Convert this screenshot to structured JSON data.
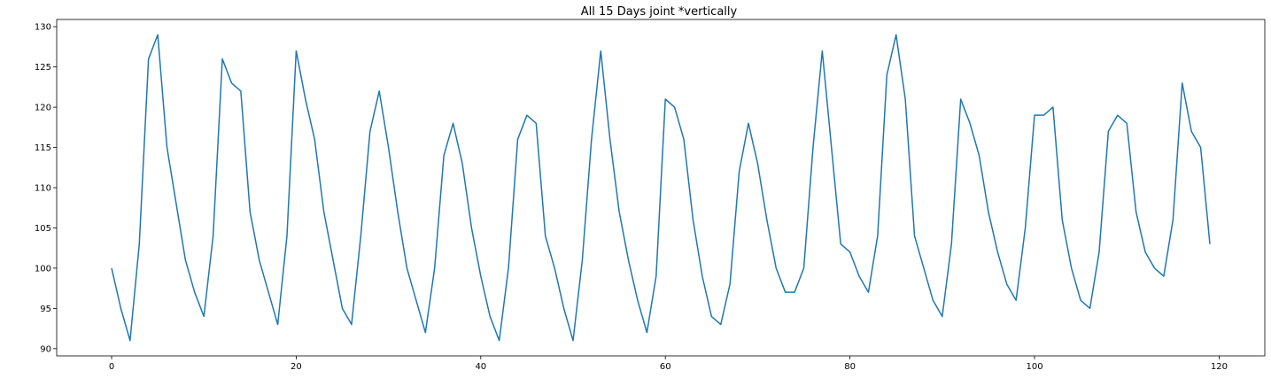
{
  "chart_data": {
    "type": "line",
    "title": "All 15 Days joint *vertically",
    "xlabel": "",
    "ylabel": "",
    "xlim": [
      -5.95,
      124.95
    ],
    "ylim": [
      89.1,
      130.9
    ],
    "xticks": [
      0,
      20,
      40,
      60,
      80,
      100,
      120
    ],
    "yticks": [
      90,
      95,
      100,
      105,
      110,
      115,
      120,
      125,
      130
    ],
    "grid": false,
    "legend": "none",
    "series_color": "#1f77b4",
    "series": [
      {
        "values": [
          100,
          95,
          91,
          103,
          126,
          129,
          115,
          108,
          101,
          97,
          94,
          104,
          126,
          123,
          122,
          107,
          101,
          97,
          93,
          104,
          127,
          121,
          116,
          107,
          101,
          95,
          93,
          104,
          117,
          122,
          115,
          107,
          100,
          96,
          92,
          100,
          114,
          118,
          113,
          105,
          99,
          94,
          91,
          100,
          116,
          119,
          118,
          104,
          100,
          95,
          91,
          101,
          116,
          127,
          116,
          107,
          101,
          96,
          92,
          99,
          121,
          120,
          116,
          106,
          99,
          94,
          93,
          98,
          112,
          118,
          113,
          106,
          100,
          97,
          97,
          100,
          115,
          127,
          115,
          103,
          102,
          99,
          97,
          104,
          124,
          129,
          121,
          104,
          100,
          96,
          94,
          103,
          121,
          118,
          114,
          107,
          102,
          98,
          96,
          105,
          119,
          119,
          120,
          106,
          100,
          96,
          95,
          102,
          117,
          119,
          118,
          107,
          102,
          100,
          99,
          106,
          123,
          117,
          115,
          103
        ]
      }
    ]
  }
}
